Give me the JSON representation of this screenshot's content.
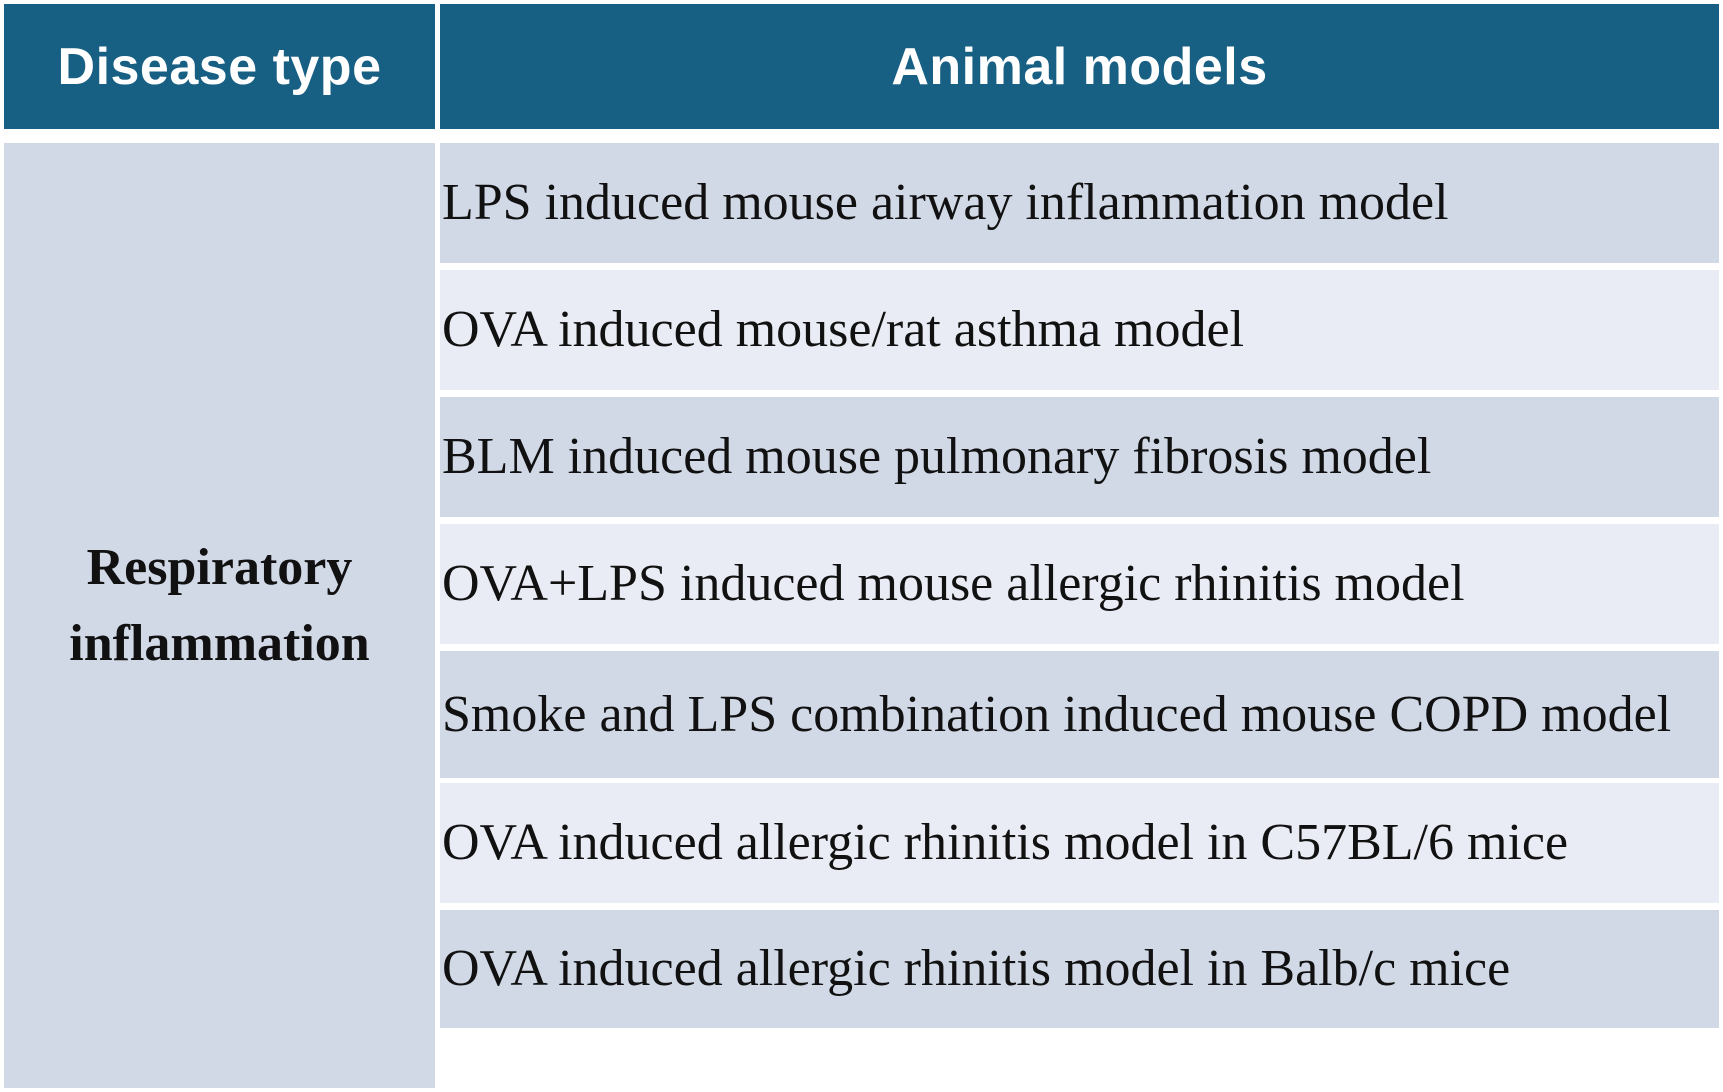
{
  "colors": {
    "header_bg": "#175f83",
    "row_dark": "#d1d8e6",
    "row_light": "#e9ecf4",
    "left_bg": "#d1d8e6",
    "separator": "#ffffff"
  },
  "table": {
    "headers": [
      "Disease type",
      "Animal models"
    ],
    "disease_type": "Respiratory\ninflammation",
    "rows": [
      "LPS induced mouse airway inflammation model",
      "OVA induced mouse/rat asthma model",
      "BLM induced mouse pulmonary fibrosis model",
      "OVA+LPS induced mouse allergic rhinitis model",
      "Smoke and LPS combination induced mouse COPD model",
      "OVA induced allergic rhinitis model in C57BL/6 mice",
      "OVA induced allergic rhinitis model in Balb/c mice"
    ]
  }
}
